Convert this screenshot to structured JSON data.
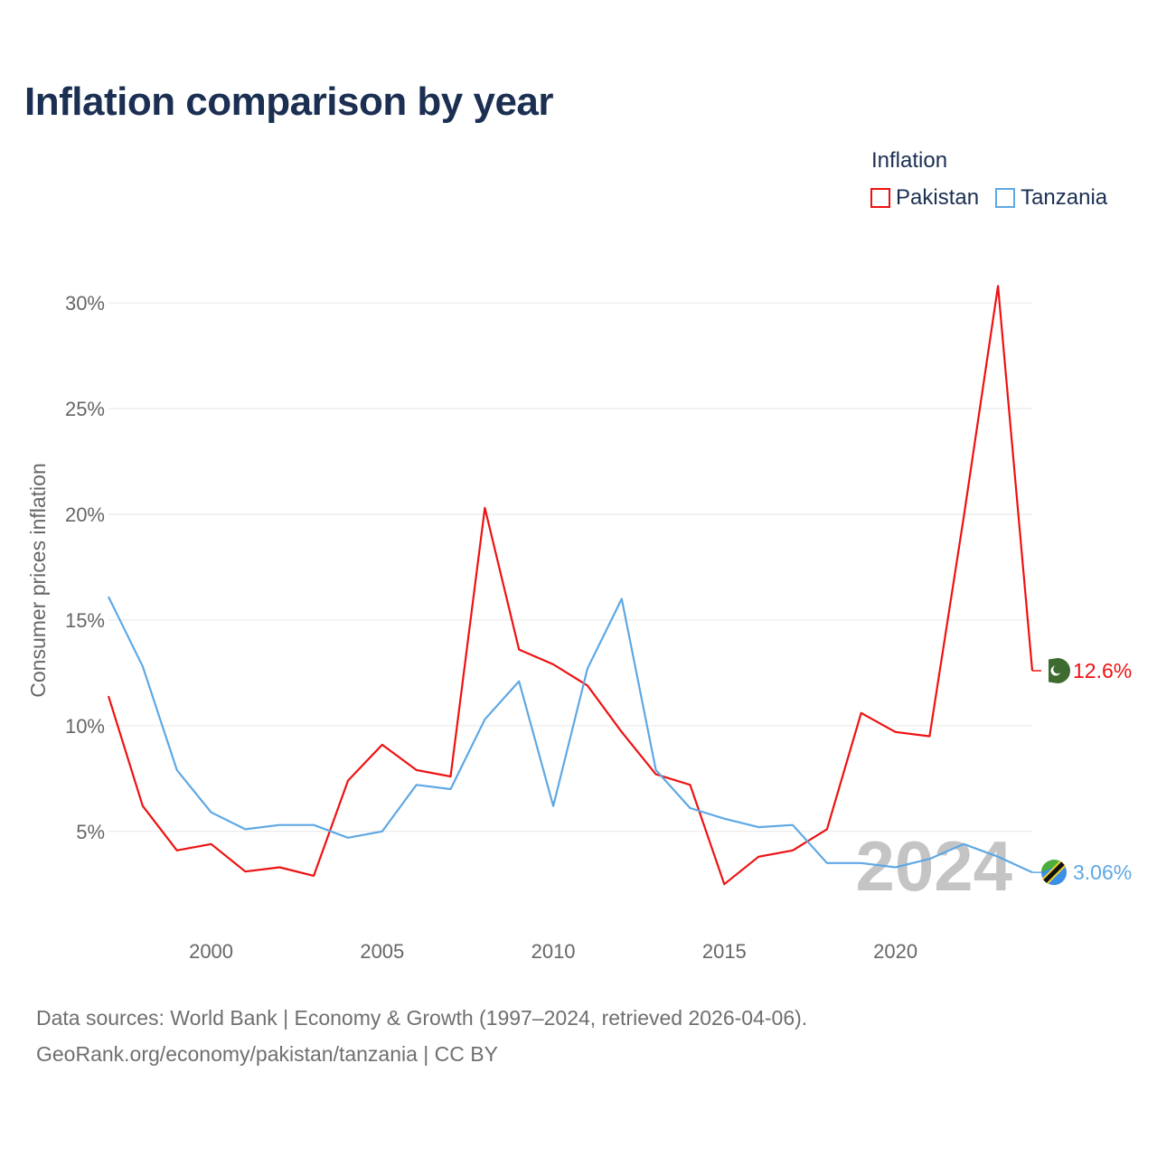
{
  "title": "Inflation comparison by year",
  "legend": {
    "title": "Inflation",
    "items": [
      {
        "label": "Pakistan",
        "color": "#ee1111"
      },
      {
        "label": "Tanzania",
        "color": "#5ea8e4"
      }
    ]
  },
  "source": {
    "line1": "Data sources: World Bank | Economy & Growth (1997–2024, retrieved 2026-04-06).",
    "line2": "GeoRank.org/economy/pakistan/tanzania | CC BY"
  },
  "chart_data": {
    "type": "line",
    "title": "Inflation comparison by year",
    "xlabel": "",
    "ylabel": "Consumer prices inflation",
    "x": [
      1997,
      1998,
      1999,
      2000,
      2001,
      2002,
      2003,
      2004,
      2005,
      2006,
      2007,
      2008,
      2009,
      2010,
      2011,
      2012,
      2013,
      2014,
      2015,
      2016,
      2017,
      2018,
      2019,
      2020,
      2021,
      2022,
      2023,
      2024
    ],
    "xlim": [
      1997,
      2024
    ],
    "ylim": [
      0.5,
      31.5
    ],
    "x_ticks": [
      2000,
      2005,
      2010,
      2015,
      2020
    ],
    "x_tick_labels": [
      "2000",
      "2005",
      "2010",
      "2015",
      "2020"
    ],
    "y_ticks": [
      5,
      10,
      15,
      20,
      25,
      30
    ],
    "y_tick_labels": [
      "5%",
      "10%",
      "15%",
      "20%",
      "25%",
      "30%"
    ],
    "grid": true,
    "watermark": "2024",
    "series": [
      {
        "name": "Pakistan",
        "color": "#ee1111",
        "end_label": "12.6%",
        "values": [
          11.4,
          6.2,
          4.1,
          4.4,
          3.1,
          3.3,
          2.9,
          7.4,
          9.1,
          7.9,
          7.6,
          20.3,
          13.6,
          12.9,
          11.9,
          9.7,
          7.7,
          7.2,
          2.5,
          3.8,
          4.1,
          5.1,
          10.6,
          9.7,
          9.5,
          19.9,
          30.8,
          12.6
        ]
      },
      {
        "name": "Tanzania",
        "color": "#5ea8e4",
        "end_label": "3.06%",
        "values": [
          16.1,
          12.8,
          7.9,
          5.9,
          5.1,
          5.3,
          5.3,
          4.7,
          5.0,
          7.2,
          7.0,
          10.3,
          12.1,
          6.2,
          12.7,
          16.0,
          7.9,
          6.1,
          5.6,
          5.2,
          5.3,
          3.5,
          3.5,
          3.3,
          3.7,
          4.4,
          3.8,
          3.06
        ]
      }
    ]
  }
}
